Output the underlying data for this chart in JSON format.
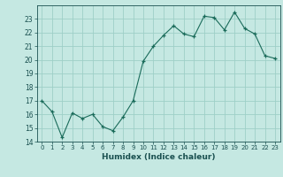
{
  "x": [
    0,
    1,
    2,
    3,
    4,
    5,
    6,
    7,
    8,
    9,
    10,
    11,
    12,
    13,
    14,
    15,
    16,
    17,
    18,
    19,
    20,
    21,
    22,
    23
  ],
  "y": [
    17.0,
    16.2,
    14.3,
    16.1,
    15.7,
    16.0,
    15.1,
    14.8,
    15.8,
    17.0,
    19.9,
    21.0,
    21.8,
    22.5,
    21.9,
    21.7,
    23.2,
    23.1,
    22.2,
    23.5,
    22.3,
    21.9,
    20.3,
    20.1
  ],
  "xlabel": "Humidex (Indice chaleur)",
  "bg_color": "#c5e8e2",
  "grid_color": "#9ecfc7",
  "line_color": "#1a6b5a",
  "marker_color": "#1a6b5a",
  "text_color": "#1a5050",
  "ylim": [
    14,
    24
  ],
  "xlim": [
    -0.5,
    23.5
  ],
  "yticks": [
    14,
    15,
    16,
    17,
    18,
    19,
    20,
    21,
    22,
    23
  ],
  "xticks": [
    0,
    1,
    2,
    3,
    4,
    5,
    6,
    7,
    8,
    9,
    10,
    11,
    12,
    13,
    14,
    15,
    16,
    17,
    18,
    19,
    20,
    21,
    22,
    23
  ]
}
